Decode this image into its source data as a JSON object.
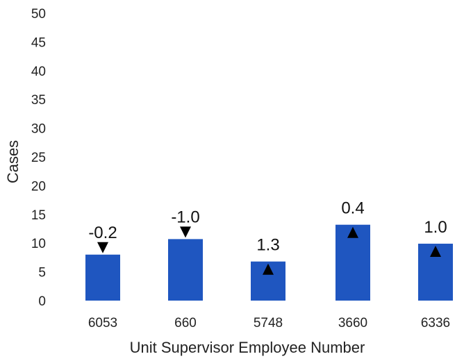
{
  "chart_data": {
    "type": "bar",
    "categories": [
      "6053",
      "660",
      "5748",
      "3660",
      "6336"
    ],
    "values": [
      8,
      10.7,
      6.8,
      13.2,
      9.9
    ],
    "data_labels": [
      "-0.2",
      "-1.0",
      "1.3",
      "0.4",
      "1.0"
    ],
    "marker_directions": [
      "down",
      "down",
      "up",
      "up",
      "up"
    ],
    "title": "",
    "xlabel": "Unit Supervisor Employee Number",
    "ylabel": "Cases",
    "ylim": [
      0,
      50
    ],
    "yticks": [
      "0",
      "5",
      "10",
      "15",
      "20",
      "25",
      "30",
      "35",
      "40",
      "45",
      "50"
    ],
    "grid": false,
    "legend": "none",
    "bar_color": "#1f56c0",
    "marker_color": "#000000"
  }
}
